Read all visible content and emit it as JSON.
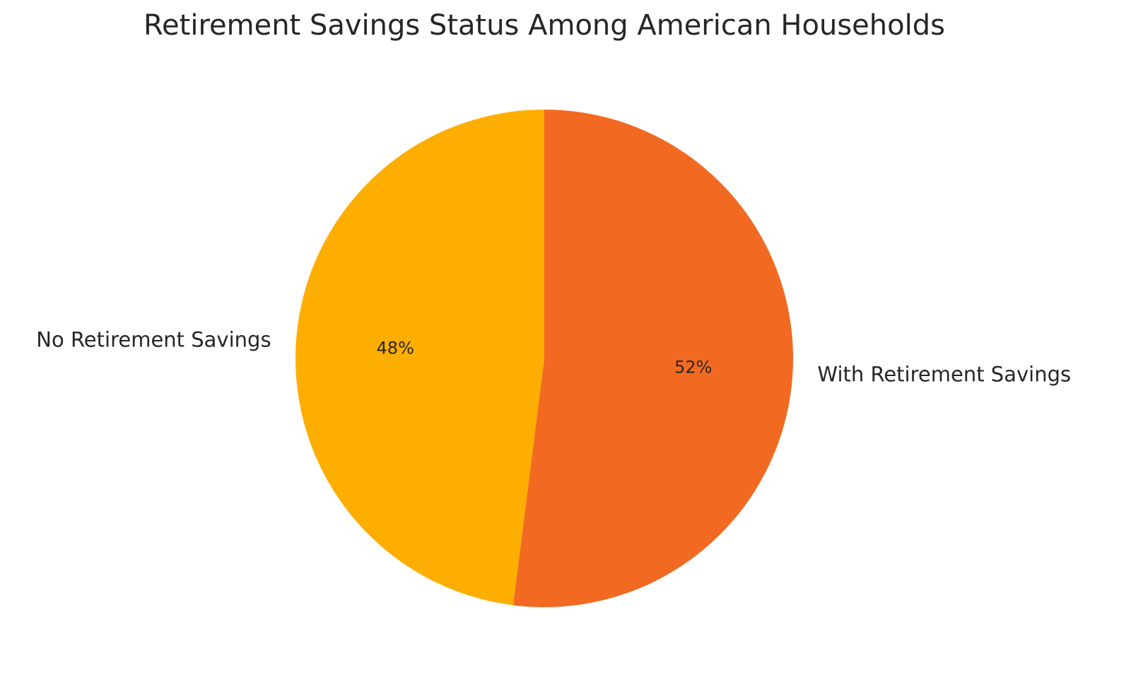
{
  "chart_data": {
    "type": "pie",
    "title": "Retirement Savings Status Among American Households",
    "categories": [
      "With Retirement Savings",
      "No Retirement Savings"
    ],
    "values": [
      52,
      48
    ],
    "value_labels": [
      "52%",
      "48%"
    ],
    "colors": [
      "#f26a22",
      "#fdae00"
    ],
    "start_angle": 90,
    "direction": "clockwise"
  }
}
